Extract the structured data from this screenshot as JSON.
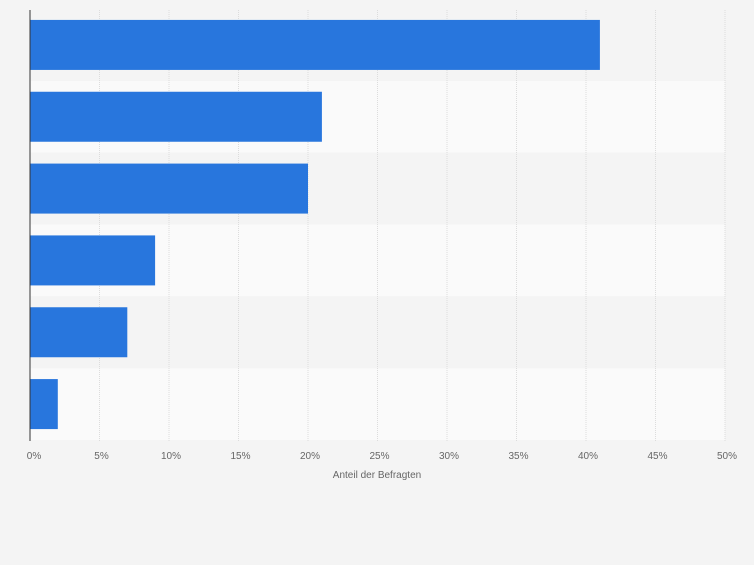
{
  "chart_data": {
    "type": "bar",
    "orientation": "horizontal",
    "title": "",
    "xlabel": "Anteil der Befragten",
    "ylabel": "",
    "categories": [
      "",
      "",
      "",
      "",
      "",
      ""
    ],
    "values": [
      41,
      21,
      20,
      9,
      7,
      2
    ],
    "xlim": [
      0,
      50
    ],
    "x_ticks": [
      0,
      5,
      10,
      15,
      20,
      25,
      30,
      35,
      40,
      45,
      50
    ],
    "x_tick_labels": [
      "0%",
      "5%",
      "10%",
      "15%",
      "20%",
      "25%",
      "30%",
      "35%",
      "40%",
      "45%",
      "50%"
    ],
    "grid": true,
    "legend": "none",
    "colors": {
      "bar": "#2876dd",
      "background": "#f4f4f4",
      "band_light": "#fafafa",
      "band_dark": "#f4f4f4",
      "grid": "#dcdcdc",
      "axis": "#333333",
      "text": "#666666"
    }
  }
}
